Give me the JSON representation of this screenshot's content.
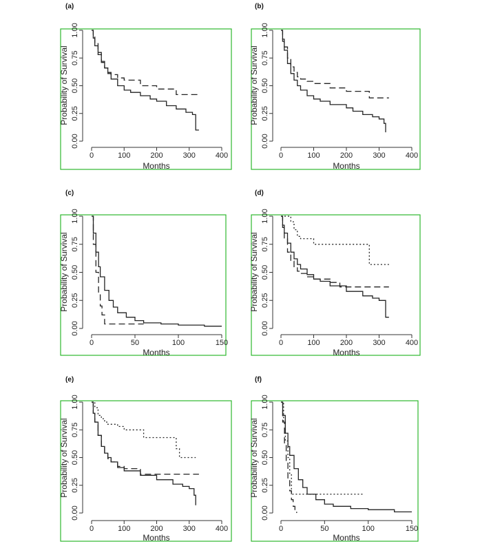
{
  "chart_data": [
    {
      "panel": "(a)",
      "type": "line",
      "xlabel": "Months",
      "ylabel": "Probability of Survival",
      "xlim": [
        0,
        400
      ],
      "ylim": [
        0,
        1
      ],
      "xticks": [
        "0",
        "100",
        "200",
        "300",
        "400"
      ],
      "yticks": [
        "0.00",
        "0.25",
        "0.50",
        "0.75",
        "1.00"
      ],
      "series": [
        {
          "name": "solid",
          "style": "solid",
          "color": "#222222",
          "x": [
            0,
            5,
            10,
            20,
            30,
            40,
            50,
            60,
            80,
            100,
            120,
            150,
            180,
            200,
            230,
            260,
            290,
            310,
            320,
            330
          ],
          "y": [
            1.0,
            0.93,
            0.86,
            0.78,
            0.71,
            0.66,
            0.61,
            0.56,
            0.5,
            0.46,
            0.44,
            0.41,
            0.38,
            0.36,
            0.32,
            0.29,
            0.26,
            0.24,
            0.1,
            0.1
          ]
        },
        {
          "name": "dashed",
          "style": "dashed",
          "color": "#555555",
          "x": [
            0,
            5,
            10,
            20,
            30,
            40,
            50,
            60,
            80,
            100,
            150,
            200,
            250,
            260,
            330
          ],
          "y": [
            1.0,
            0.94,
            0.88,
            0.8,
            0.72,
            0.66,
            0.62,
            0.6,
            0.57,
            0.55,
            0.5,
            0.47,
            0.47,
            0.42,
            0.42
          ]
        }
      ]
    },
    {
      "panel": "(b)",
      "type": "line",
      "xlabel": "Months",
      "ylabel": "Probability of Survival",
      "xlim": [
        0,
        400
      ],
      "ylim": [
        0,
        1
      ],
      "xticks": [
        "0",
        "100",
        "200",
        "300",
        "400"
      ],
      "yticks": [
        "0.00",
        "0.25",
        "0.50",
        "0.75",
        "1.00"
      ],
      "series": [
        {
          "name": "solid",
          "style": "solid",
          "color": "#222222",
          "x": [
            0,
            5,
            10,
            20,
            30,
            40,
            50,
            60,
            80,
            100,
            120,
            150,
            200,
            220,
            250,
            280,
            300,
            315,
            320
          ],
          "y": [
            1.0,
            0.9,
            0.82,
            0.7,
            0.61,
            0.55,
            0.5,
            0.46,
            0.41,
            0.38,
            0.36,
            0.33,
            0.3,
            0.27,
            0.24,
            0.22,
            0.2,
            0.16,
            0.08
          ]
        },
        {
          "name": "dashed",
          "style": "dashed",
          "color": "#555555",
          "x": [
            0,
            5,
            10,
            20,
            30,
            40,
            50,
            60,
            80,
            100,
            150,
            200,
            250,
            270,
            330
          ],
          "y": [
            1.0,
            0.92,
            0.85,
            0.75,
            0.67,
            0.62,
            0.58,
            0.56,
            0.54,
            0.52,
            0.48,
            0.45,
            0.45,
            0.39,
            0.39
          ]
        }
      ]
    },
    {
      "panel": "(c)",
      "type": "line",
      "xlabel": "Months",
      "ylabel": "Probability of Survival",
      "xlim": [
        0,
        150
      ],
      "ylim": [
        0,
        1
      ],
      "xticks": [
        "0",
        "50",
        "100",
        "150"
      ],
      "yticks": [
        "0.00",
        "0.25",
        "0.50",
        "0.75",
        "1.00"
      ],
      "series": [
        {
          "name": "solid",
          "style": "solid",
          "color": "#222222",
          "x": [
            0,
            2,
            5,
            8,
            10,
            15,
            20,
            25,
            30,
            40,
            50,
            60,
            80,
            100,
            130,
            150
          ],
          "y": [
            1.0,
            0.85,
            0.68,
            0.55,
            0.46,
            0.34,
            0.25,
            0.19,
            0.14,
            0.1,
            0.07,
            0.05,
            0.04,
            0.03,
            0.02,
            0.02
          ]
        },
        {
          "name": "dashed",
          "style": "dashed",
          "color": "#555555",
          "x": [
            0,
            2,
            5,
            8,
            10,
            12,
            15,
            20,
            30,
            50,
            60
          ],
          "y": [
            1.0,
            0.75,
            0.5,
            0.3,
            0.2,
            0.12,
            0.04,
            0.04,
            0.04,
            0.04,
            0.04
          ]
        }
      ]
    },
    {
      "panel": "(d)",
      "type": "line",
      "xlabel": "Months",
      "ylabel": "Probability of Survival",
      "xlim": [
        0,
        400
      ],
      "ylim": [
        0,
        1
      ],
      "xticks": [
        "0",
        "100",
        "200",
        "300",
        "400"
      ],
      "yticks": [
        "0.00",
        "0.25",
        "0.50",
        "0.75",
        "1.00"
      ],
      "series": [
        {
          "name": "solid",
          "style": "solid",
          "color": "#222222",
          "x": [
            0,
            5,
            10,
            20,
            30,
            40,
            50,
            60,
            80,
            100,
            120,
            150,
            200,
            250,
            280,
            300,
            320,
            330
          ],
          "y": [
            1.0,
            0.92,
            0.85,
            0.76,
            0.68,
            0.62,
            0.57,
            0.53,
            0.48,
            0.44,
            0.42,
            0.38,
            0.33,
            0.29,
            0.27,
            0.25,
            0.1,
            0.1
          ]
        },
        {
          "name": "dashed",
          "style": "dashed",
          "color": "#444444",
          "x": [
            0,
            5,
            10,
            20,
            30,
            40,
            50,
            60,
            80,
            100,
            150,
            180,
            330
          ],
          "y": [
            1.0,
            0.9,
            0.8,
            0.68,
            0.6,
            0.55,
            0.51,
            0.49,
            0.46,
            0.44,
            0.41,
            0.37,
            0.37
          ]
        },
        {
          "name": "dotted",
          "style": "dotted",
          "color": "#555555",
          "x": [
            0,
            20,
            30,
            40,
            50,
            60,
            100,
            150,
            200,
            260,
            270,
            330
          ],
          "y": [
            1.0,
            1.0,
            0.95,
            0.88,
            0.82,
            0.8,
            0.75,
            0.75,
            0.75,
            0.75,
            0.57,
            0.57
          ]
        }
      ]
    },
    {
      "panel": "(e)",
      "type": "line",
      "xlabel": "Months",
      "ylabel": "Probability of Survival",
      "xlim": [
        0,
        400
      ],
      "ylim": [
        0,
        1
      ],
      "xticks": [
        "0",
        "100",
        "200",
        "300",
        "400"
      ],
      "yticks": [
        "0.00",
        "0.25",
        "0.50",
        "0.75",
        "1.00"
      ],
      "series": [
        {
          "name": "solid",
          "style": "solid",
          "color": "#222222",
          "x": [
            0,
            5,
            10,
            20,
            30,
            40,
            50,
            60,
            80,
            100,
            150,
            200,
            250,
            280,
            300,
            315,
            320
          ],
          "y": [
            1.0,
            0.9,
            0.82,
            0.7,
            0.6,
            0.54,
            0.5,
            0.46,
            0.41,
            0.38,
            0.34,
            0.3,
            0.26,
            0.24,
            0.22,
            0.16,
            0.07
          ]
        },
        {
          "name": "dashed",
          "style": "dashed",
          "color": "#444444",
          "x": [
            0,
            5,
            10,
            20,
            30,
            40,
            50,
            60,
            80,
            100,
            150,
            330
          ],
          "y": [
            1.0,
            0.9,
            0.82,
            0.7,
            0.6,
            0.54,
            0.49,
            0.46,
            0.42,
            0.4,
            0.35,
            0.35
          ]
        },
        {
          "name": "dotted",
          "style": "dotted",
          "color": "#555555",
          "x": [
            0,
            10,
            20,
            30,
            40,
            50,
            60,
            80,
            100,
            150,
            160,
            200,
            250,
            260,
            270,
            320
          ],
          "y": [
            1.0,
            0.95,
            0.88,
            0.85,
            0.82,
            0.8,
            0.8,
            0.78,
            0.75,
            0.75,
            0.68,
            0.68,
            0.68,
            0.58,
            0.5,
            0.5
          ]
        }
      ]
    },
    {
      "panel": "(f)",
      "type": "line",
      "xlabel": "Months",
      "ylabel": "Probability of Survival",
      "xlim": [
        0,
        150
      ],
      "ylim": [
        0,
        1
      ],
      "xticks": [
        "0",
        "50",
        "100",
        "150"
      ],
      "yticks": [
        "0.00",
        "0.25",
        "0.50",
        "0.75",
        "1.00"
      ],
      "series": [
        {
          "name": "solid",
          "style": "solid",
          "color": "#222222",
          "x": [
            0,
            2,
            5,
            8,
            10,
            15,
            20,
            25,
            30,
            40,
            50,
            60,
            80,
            100,
            130,
            150
          ],
          "y": [
            1.0,
            0.88,
            0.72,
            0.6,
            0.52,
            0.4,
            0.3,
            0.23,
            0.17,
            0.12,
            0.08,
            0.06,
            0.04,
            0.03,
            0.01,
            0.01
          ]
        },
        {
          "name": "dashed",
          "style": "dashed",
          "color": "#444444",
          "x": [
            0,
            2,
            4,
            6,
            8,
            10,
            12,
            14,
            16,
            18
          ],
          "y": [
            1.0,
            0.82,
            0.62,
            0.45,
            0.3,
            0.2,
            0.12,
            0.06,
            0.02,
            0.0
          ]
        },
        {
          "name": "dotted",
          "style": "dotted",
          "color": "#333333",
          "x": [
            0,
            3,
            5,
            8,
            10,
            12,
            15,
            50,
            95
          ],
          "y": [
            1.0,
            0.82,
            0.65,
            0.5,
            0.35,
            0.17,
            0.17,
            0.17,
            0.17
          ]
        }
      ]
    }
  ]
}
